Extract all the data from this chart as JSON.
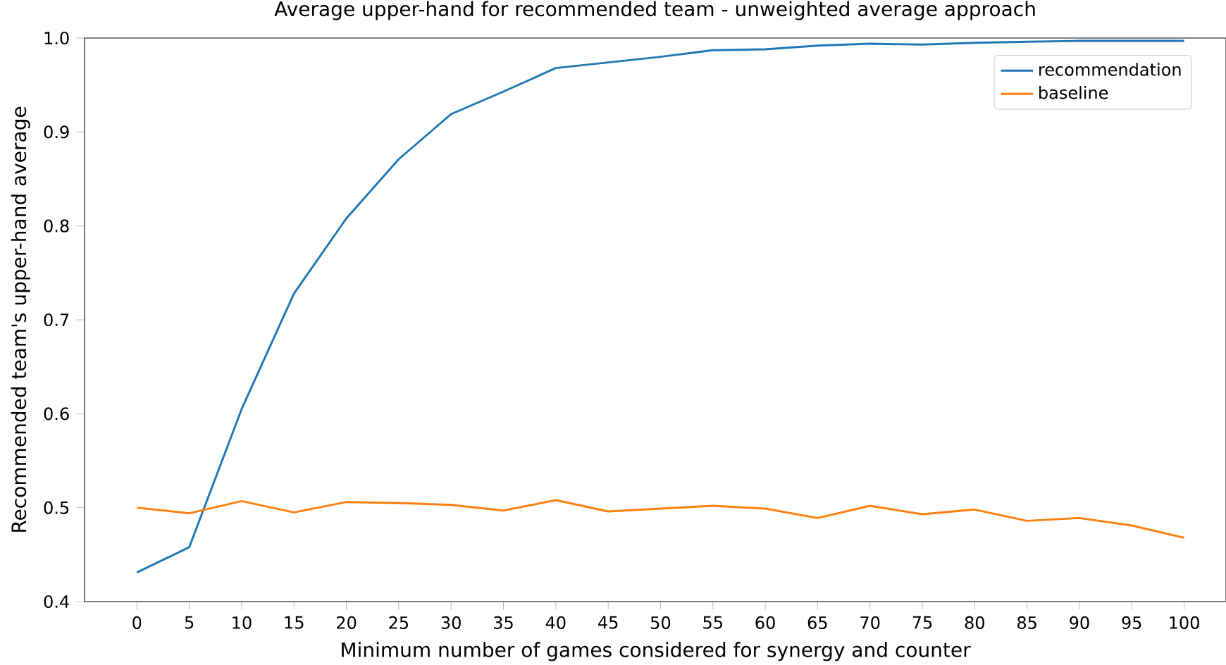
{
  "chart_data": {
    "type": "line",
    "title": "Average upper-hand for recommended team - unweighted average approach",
    "xlabel": "Minimum number of games considered for synergy and counter",
    "ylabel": "Recommended team's upper-hand average",
    "x": [
      0,
      5,
      10,
      15,
      20,
      25,
      30,
      35,
      40,
      45,
      50,
      55,
      60,
      65,
      70,
      75,
      80,
      85,
      90,
      95,
      100
    ],
    "series": [
      {
        "name": "recommendation",
        "color": "#1f77b4",
        "values": [
          0.431,
          0.458,
          0.605,
          0.728,
          0.808,
          0.871,
          0.919,
          0.943,
          0.968,
          0.974,
          0.98,
          0.987,
          0.988,
          0.992,
          0.994,
          0.993,
          0.995,
          0.996,
          0.997,
          0.997,
          0.997
        ]
      },
      {
        "name": "baseline",
        "color": "#ff7f0e",
        "values": [
          0.5,
          0.494,
          0.507,
          0.495,
          0.506,
          0.505,
          0.503,
          0.497,
          0.508,
          0.496,
          0.499,
          0.502,
          0.499,
          0.489,
          0.502,
          0.493,
          0.498,
          0.486,
          0.489,
          0.481,
          0.468
        ]
      }
    ],
    "xlim": [
      -5,
      104
    ],
    "ylim": [
      0.4,
      1.0
    ],
    "xticks": [
      0,
      5,
      10,
      15,
      20,
      25,
      30,
      35,
      40,
      45,
      50,
      55,
      60,
      65,
      70,
      75,
      80,
      85,
      90,
      95,
      100
    ],
    "yticks": [
      {
        "value": 0.4,
        "label": "0.4"
      },
      {
        "value": 0.5,
        "label": "0.5"
      },
      {
        "value": 0.6,
        "label": "0.6"
      },
      {
        "value": 0.7,
        "label": "0.7"
      },
      {
        "value": 0.8,
        "label": "0.8"
      },
      {
        "value": 0.9,
        "label": "0.9"
      },
      {
        "value": 1.0,
        "label": "1.0"
      }
    ],
    "legend": "top right",
    "grid": false,
    "marker": "none",
    "line_style": "solid"
  }
}
